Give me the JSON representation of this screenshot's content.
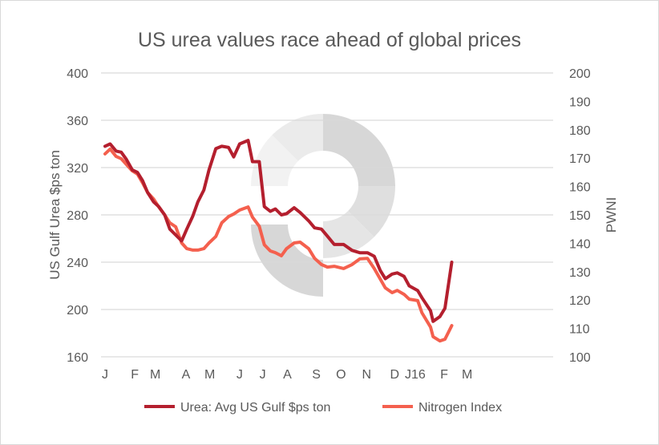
{
  "chart_data": {
    "type": "line",
    "title": "US urea values race ahead of global prices",
    "ylabel_left": "US Gulf Urea $ps ton",
    "ylabel_right": "PWNI",
    "ylim_left": [
      160,
      400
    ],
    "yticks_left": [
      160,
      200,
      240,
      280,
      320,
      360,
      400
    ],
    "ylim_right": [
      100,
      200
    ],
    "yticks_right": [
      100,
      110,
      120,
      130,
      140,
      150,
      160,
      170,
      180,
      190,
      200
    ],
    "xlim": [
      "2015-01-01",
      "2016-06-10"
    ],
    "xticks": [
      {
        "label": "J",
        "date": "2015-01-01"
      },
      {
        "label": "F",
        "date": "2015-02-05"
      },
      {
        "label": "M",
        "date": "2015-03-01"
      },
      {
        "label": "A",
        "date": "2015-04-06"
      },
      {
        "label": "M",
        "date": "2015-05-04"
      },
      {
        "label": "J",
        "date": "2015-06-08"
      },
      {
        "label": "J",
        "date": "2015-07-05"
      },
      {
        "label": "A",
        "date": "2015-08-03"
      },
      {
        "label": "S",
        "date": "2015-09-06"
      },
      {
        "label": "O",
        "date": "2015-10-05"
      },
      {
        "label": "N",
        "date": "2015-11-04"
      },
      {
        "label": "D",
        "date": "2015-12-07"
      },
      {
        "label": "J16",
        "date": "2015-12-31"
      },
      {
        "label": "F",
        "date": "2016-02-03"
      },
      {
        "label": "M",
        "date": "2016-03-01"
      }
    ],
    "grid": true,
    "legend": "bottom",
    "x": [
      "2015-01-01",
      "2015-01-07",
      "2015-01-14",
      "2015-01-20",
      "2015-01-26",
      "2015-02-02",
      "2015-02-08",
      "2015-02-14",
      "2015-02-20",
      "2015-02-27",
      "2015-03-05",
      "2015-03-12",
      "2015-03-18",
      "2015-03-25",
      "2015-04-01",
      "2015-04-07",
      "2015-04-14",
      "2015-04-20",
      "2015-04-27",
      "2015-05-03",
      "2015-05-11",
      "2015-05-18",
      "2015-05-26",
      "2015-06-01",
      "2015-06-08",
      "2015-06-18",
      "2015-06-23",
      "2015-07-01",
      "2015-07-07",
      "2015-07-14",
      "2015-07-20",
      "2015-07-27",
      "2015-08-02",
      "2015-08-11",
      "2015-08-18",
      "2015-08-28",
      "2015-09-04",
      "2015-09-12",
      "2015-09-19",
      "2015-09-27",
      "2015-10-08",
      "2015-10-18",
      "2015-10-27",
      "2015-11-05",
      "2015-11-13",
      "2015-11-20",
      "2015-11-26",
      "2015-12-04",
      "2015-12-10",
      "2015-12-18",
      "2015-12-24",
      "2016-01-03",
      "2016-01-08",
      "2016-01-18",
      "2016-01-21",
      "2016-01-29",
      "2016-02-04",
      "2016-02-12"
    ],
    "series": [
      {
        "name": "Urea: Avg US Gulf $ps ton",
        "axis": "left",
        "color": "#b41f2e",
        "values": [
          338,
          340,
          334,
          333,
          327,
          318,
          316,
          309,
          299,
          291,
          287,
          280,
          268,
          263,
          258,
          268,
          279,
          291,
          301,
          318,
          336,
          338,
          337,
          329,
          340,
          343,
          325,
          325,
          287,
          283,
          285,
          280,
          281,
          286,
          282,
          275,
          269,
          268,
          262,
          255,
          255,
          250,
          248,
          248,
          245,
          233,
          226,
          230,
          231,
          228,
          220,
          216,
          210,
          199,
          190,
          194,
          201,
          240
        ]
      },
      {
        "name": "Nitrogen Index",
        "axis": "right",
        "color": "#f4604e",
        "values": [
          171.5,
          173.2,
          170.6,
          169.8,
          167.8,
          165.5,
          164.4,
          161.3,
          157.9,
          155.6,
          152.8,
          150,
          147.2,
          145.8,
          140.1,
          138.1,
          137.6,
          137.6,
          138.1,
          140.1,
          142.4,
          147.2,
          149.4,
          150.3,
          151.7,
          152.8,
          149.2,
          146,
          139.5,
          137.3,
          136.7,
          135.6,
          138.1,
          140.1,
          140.4,
          138.1,
          134.7,
          132.5,
          131.6,
          131.9,
          131.1,
          132.5,
          134.5,
          134.7,
          131.1,
          127.4,
          124.3,
          122.6,
          123.4,
          122,
          120.3,
          119.8,
          115.5,
          110.5,
          107.1,
          105.6,
          106.2,
          111
        ]
      }
    ]
  }
}
